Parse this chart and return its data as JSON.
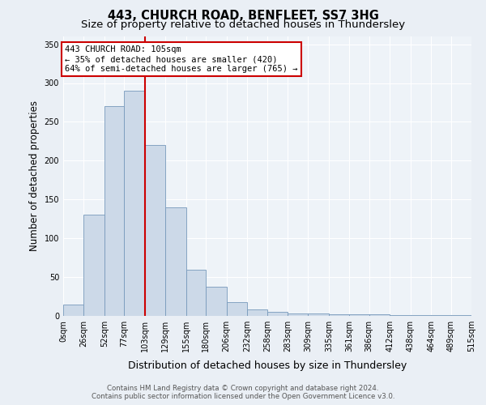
{
  "title": "443, CHURCH ROAD, BENFLEET, SS7 3HG",
  "subtitle": "Size of property relative to detached houses in Thundersley",
  "xlabel": "Distribution of detached houses by size in Thundersley",
  "ylabel": "Number of detached properties",
  "footnote1": "Contains HM Land Registry data © Crown copyright and database right 2024.",
  "footnote2": "Contains public sector information licensed under the Open Government Licence v3.0.",
  "bin_labels": [
    "0sqm",
    "26sqm",
    "52sqm",
    "77sqm",
    "103sqm",
    "129sqm",
    "155sqm",
    "180sqm",
    "206sqm",
    "232sqm",
    "258sqm",
    "283sqm",
    "309sqm",
    "335sqm",
    "361sqm",
    "386sqm",
    "412sqm",
    "438sqm",
    "464sqm",
    "489sqm",
    "515sqm"
  ],
  "bar_values": [
    15,
    130,
    270,
    290,
    220,
    140,
    60,
    38,
    18,
    8,
    5,
    3,
    3,
    2,
    2,
    2,
    1,
    1,
    1,
    1,
    1
  ],
  "bar_color": "#ccd9e8",
  "bar_edge_color": "#7799bb",
  "property_label": "443 CHURCH ROAD: 105sqm",
  "annotation_line1": "← 35% of detached houses are smaller (420)",
  "annotation_line2": "64% of semi-detached houses are larger (765) →",
  "vline_color": "#cc0000",
  "vline_x": 103,
  "ylim": [
    0,
    360
  ],
  "yticks": [
    0,
    50,
    100,
    150,
    200,
    250,
    300,
    350
  ],
  "bg_color": "#eaeff5",
  "plot_bg_color": "#eef3f8",
  "grid_color": "#ffffff",
  "title_fontsize": 10.5,
  "subtitle_fontsize": 9.5,
  "axis_label_fontsize": 8.5,
  "tick_fontsize": 7,
  "bin_edges": [
    0,
    26,
    52,
    77,
    103,
    129,
    155,
    180,
    206,
    232,
    258,
    283,
    309,
    335,
    361,
    386,
    412,
    438,
    464,
    489,
    515
  ]
}
